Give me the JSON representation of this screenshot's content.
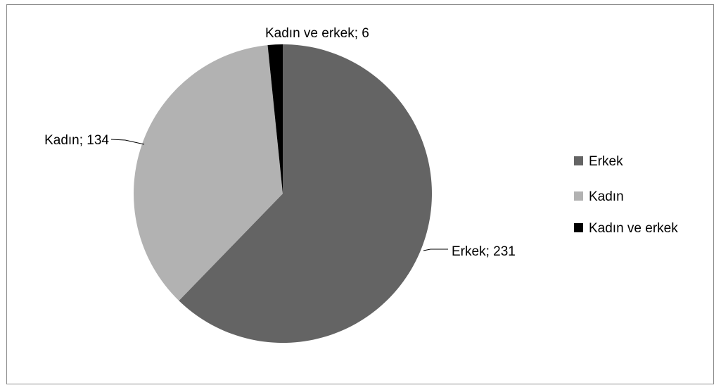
{
  "chart_data": {
    "type": "pie",
    "title": "",
    "slices": [
      {
        "label": "Erkek",
        "value": 231,
        "color": "#646464",
        "data_label": "Erkek; 231"
      },
      {
        "label": "Kadın",
        "value": 134,
        "color": "#b2b2b2",
        "data_label": "Kadın; 134"
      },
      {
        "label": "Kadın ve erkek",
        "value": 6,
        "color": "#000000",
        "data_label": "Kadın ve erkek; 6"
      }
    ],
    "legend": {
      "position": "right",
      "entries": [
        "Erkek",
        "Kadın",
        "Kadın ve erkek"
      ]
    }
  }
}
